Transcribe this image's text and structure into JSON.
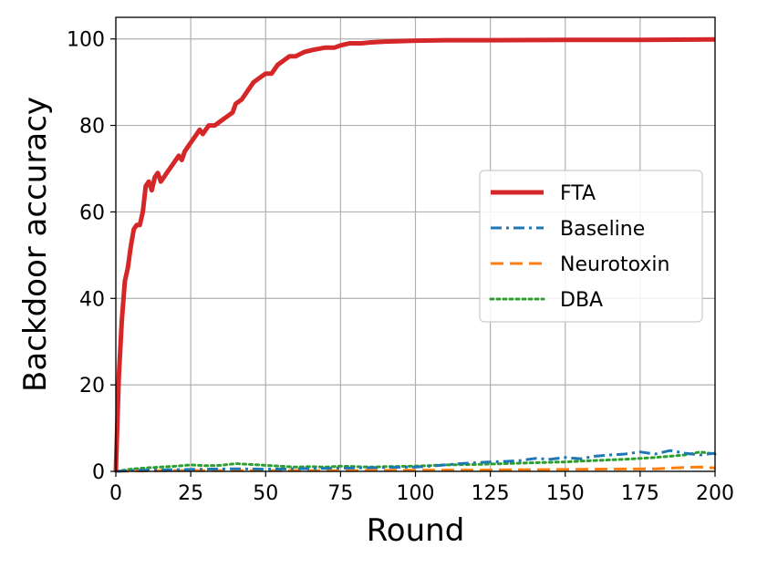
{
  "chart_data": {
    "type": "line",
    "xlabel": "Round",
    "ylabel": "Backdoor accuracy",
    "xlim": [
      0,
      200
    ],
    "ylim": [
      0,
      105
    ],
    "xticks": [
      0,
      25,
      50,
      75,
      100,
      125,
      150,
      175,
      200
    ],
    "yticks": [
      0,
      20,
      40,
      60,
      80,
      100
    ],
    "grid": true,
    "legend_position": "center-right",
    "series": [
      {
        "name": "FTA",
        "color": "#d62728",
        "style": "solid",
        "points": [
          [
            0,
            0
          ],
          [
            1,
            22
          ],
          [
            2,
            35
          ],
          [
            3,
            44
          ],
          [
            4,
            47
          ],
          [
            5,
            52
          ],
          [
            6,
            56
          ],
          [
            7,
            57
          ],
          [
            8,
            57
          ],
          [
            9,
            60
          ],
          [
            10,
            66
          ],
          [
            11,
            67
          ],
          [
            12,
            65
          ],
          [
            13,
            68
          ],
          [
            14,
            69
          ],
          [
            15,
            67
          ],
          [
            16,
            68
          ],
          [
            17,
            69
          ],
          [
            18,
            70
          ],
          [
            19,
            71
          ],
          [
            20,
            72
          ],
          [
            21,
            73
          ],
          [
            22,
            72
          ],
          [
            23,
            74
          ],
          [
            24,
            75
          ],
          [
            25,
            76
          ],
          [
            26,
            77
          ],
          [
            27,
            78
          ],
          [
            28,
            79
          ],
          [
            29,
            78
          ],
          [
            30,
            79
          ],
          [
            31,
            80
          ],
          [
            33,
            80
          ],
          [
            35,
            81
          ],
          [
            37,
            82
          ],
          [
            39,
            83
          ],
          [
            40,
            85
          ],
          [
            42,
            86
          ],
          [
            44,
            88
          ],
          [
            46,
            90
          ],
          [
            48,
            91
          ],
          [
            50,
            92
          ],
          [
            52,
            92
          ],
          [
            54,
            94
          ],
          [
            56,
            95
          ],
          [
            58,
            96
          ],
          [
            60,
            96
          ],
          [
            63,
            97
          ],
          [
            66,
            97.5
          ],
          [
            70,
            98
          ],
          [
            73,
            98
          ],
          [
            75,
            98.5
          ],
          [
            78,
            99
          ],
          [
            82,
            99
          ],
          [
            85,
            99.2
          ],
          [
            90,
            99.4
          ],
          [
            95,
            99.5
          ],
          [
            100,
            99.6
          ],
          [
            110,
            99.7
          ],
          [
            125,
            99.7
          ],
          [
            150,
            99.8
          ],
          [
            175,
            99.8
          ],
          [
            200,
            99.9
          ]
        ]
      },
      {
        "name": "Baseline",
        "color": "#1f77b4",
        "style": "dashdot",
        "points": [
          [
            0,
            0
          ],
          [
            5,
            0.2
          ],
          [
            10,
            0.3
          ],
          [
            20,
            0.4
          ],
          [
            30,
            0.5
          ],
          [
            40,
            0.6
          ],
          [
            50,
            0.5
          ],
          [
            60,
            0.6
          ],
          [
            70,
            0.7
          ],
          [
            80,
            0.8
          ],
          [
            90,
            0.9
          ],
          [
            100,
            1.0
          ],
          [
            105,
            1.2
          ],
          [
            110,
            1.5
          ],
          [
            115,
            1.8
          ],
          [
            120,
            2.0
          ],
          [
            125,
            2.2
          ],
          [
            130,
            2.3
          ],
          [
            135,
            2.5
          ],
          [
            140,
            3.0
          ],
          [
            145,
            2.8
          ],
          [
            150,
            3.2
          ],
          [
            155,
            2.9
          ],
          [
            160,
            3.5
          ],
          [
            165,
            3.8
          ],
          [
            170,
            4.0
          ],
          [
            175,
            4.5
          ],
          [
            180,
            4.0
          ],
          [
            185,
            4.8
          ],
          [
            190,
            4.2
          ],
          [
            195,
            3.8
          ],
          [
            200,
            4.2
          ]
        ]
      },
      {
        "name": "Neurotoxin",
        "color": "#ff7f0e",
        "style": "dashed",
        "points": [
          [
            0,
            0
          ],
          [
            10,
            0.1
          ],
          [
            20,
            0.2
          ],
          [
            40,
            0.2
          ],
          [
            60,
            0.2
          ],
          [
            80,
            0.2
          ],
          [
            100,
            0.3
          ],
          [
            120,
            0.3
          ],
          [
            140,
            0.4
          ],
          [
            160,
            0.5
          ],
          [
            180,
            0.6
          ],
          [
            190,
            0.9
          ],
          [
            195,
            1.0
          ],
          [
            200,
            0.8
          ]
        ]
      },
      {
        "name": "DBA",
        "color": "#2ca02c",
        "style": "dotted",
        "points": [
          [
            0,
            0
          ],
          [
            5,
            0.5
          ],
          [
            10,
            0.8
          ],
          [
            15,
            1.0
          ],
          [
            20,
            1.2
          ],
          [
            25,
            1.5
          ],
          [
            30,
            1.3
          ],
          [
            35,
            1.4
          ],
          [
            40,
            1.8
          ],
          [
            45,
            1.6
          ],
          [
            50,
            1.4
          ],
          [
            55,
            1.2
          ],
          [
            60,
            1.0
          ],
          [
            65,
            1.1
          ],
          [
            70,
            1.0
          ],
          [
            75,
            1.2
          ],
          [
            80,
            1.1
          ],
          [
            85,
            1.0
          ],
          [
            90,
            1.1
          ],
          [
            100,
            1.2
          ],
          [
            110,
            1.5
          ],
          [
            120,
            1.6
          ],
          [
            130,
            1.8
          ],
          [
            140,
            2.0
          ],
          [
            150,
            2.2
          ],
          [
            160,
            2.5
          ],
          [
            170,
            2.8
          ],
          [
            175,
            3.0
          ],
          [
            180,
            3.2
          ],
          [
            185,
            3.5
          ],
          [
            190,
            3.8
          ],
          [
            195,
            4.5
          ],
          [
            200,
            4.0
          ]
        ]
      }
    ]
  }
}
